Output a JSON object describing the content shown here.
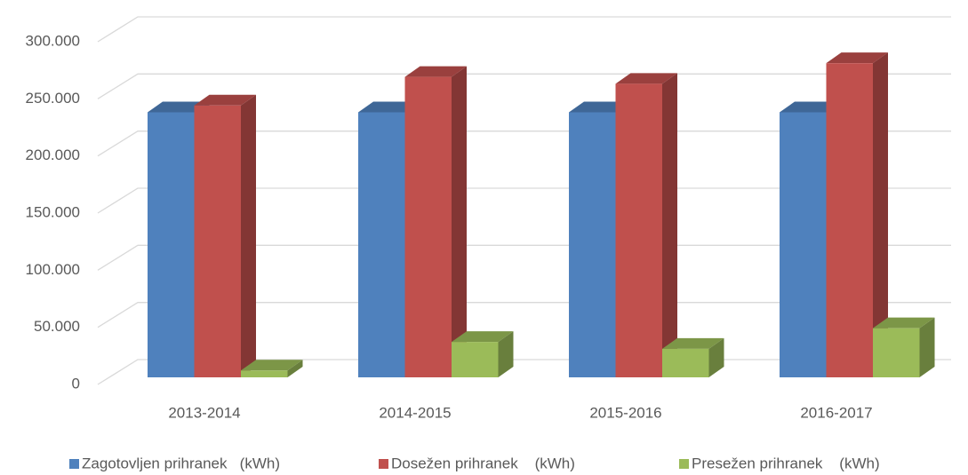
{
  "chart_data": {
    "type": "bar3d",
    "categories": [
      "2013-2014",
      "2014-2015",
      "2015-2016",
      "2016-2017"
    ],
    "series": [
      {
        "name": "Zagotovljen prihranek   (kWh)",
        "color": "#4f81bd",
        "values": [
          232000,
          232000,
          232000,
          232000
        ]
      },
      {
        "name": "Dosežen prihranek    (kWh)",
        "color": "#c0504d",
        "values": [
          238000,
          263000,
          257000,
          275000
        ]
      },
      {
        "name": "Presežen prihranek    (kWh)",
        "color": "#9bbb59",
        "values": [
          6000,
          31000,
          25000,
          43000
        ]
      }
    ],
    "ylim": [
      0,
      300000
    ],
    "yticks": [
      0,
      {
        "value": 50000,
        "label": "50.000"
      },
      {
        "value": 100000,
        "label": "100.000"
      },
      {
        "value": 150000,
        "label": "150.000"
      },
      {
        "value": 200000,
        "label": "200.000"
      },
      {
        "value": 250000,
        "label": "250.000"
      },
      {
        "value": 300000,
        "label": "300.000"
      }
    ],
    "grid": true
  }
}
